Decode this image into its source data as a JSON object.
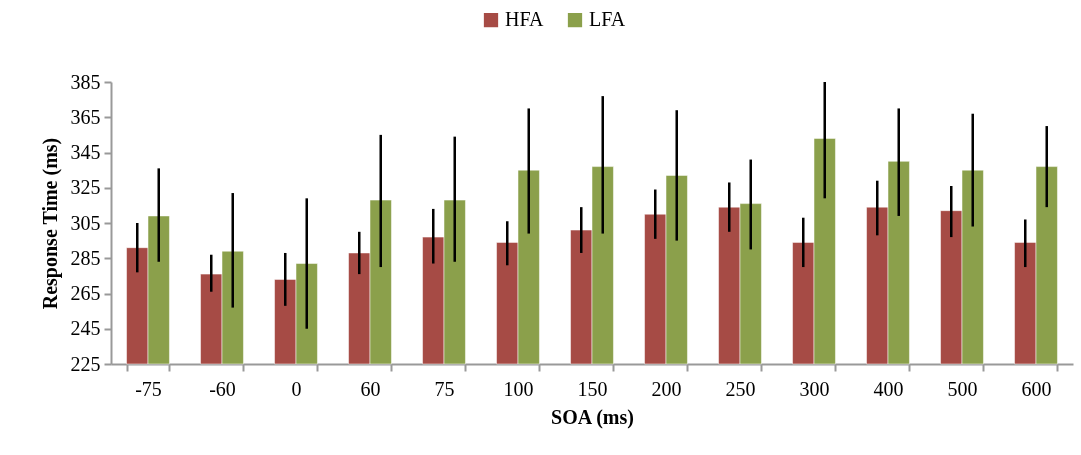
{
  "chart_data": {
    "type": "bar",
    "xlabel": "SOA (ms)",
    "ylabel": "Response Time (ms)",
    "categories": [
      "-75",
      "-60",
      "0",
      "60",
      "75",
      "100",
      "150",
      "200",
      "250",
      "300",
      "400",
      "500",
      "600"
    ],
    "series": [
      {
        "name": "HFA",
        "color": "#a64b45",
        "values": [
          291,
          276,
          273,
          288,
          297,
          294,
          301,
          310,
          314,
          294,
          314,
          312,
          294
        ],
        "errors": [
          [
            277,
            305
          ],
          [
            266,
            287
          ],
          [
            258,
            288
          ],
          [
            276,
            300
          ],
          [
            282,
            313
          ],
          [
            281,
            306
          ],
          [
            288,
            314
          ],
          [
            296,
            324
          ],
          [
            300,
            328
          ],
          [
            280,
            308
          ],
          [
            298,
            329
          ],
          [
            297,
            326
          ],
          [
            280,
            307
          ]
        ]
      },
      {
        "name": "LFA",
        "color": "#8ba04b",
        "values": [
          309,
          289,
          282,
          318,
          318,
          335,
          337,
          332,
          316,
          353,
          340,
          335,
          337
        ],
        "errors": [
          [
            283,
            336
          ],
          [
            257,
            322
          ],
          [
            245,
            319
          ],
          [
            280,
            355
          ],
          [
            283,
            354
          ],
          [
            299,
            370
          ],
          [
            299,
            377
          ],
          [
            295,
            369
          ],
          [
            290,
            341
          ],
          [
            319,
            385
          ],
          [
            309,
            370
          ],
          [
            303,
            367
          ],
          [
            314,
            360
          ]
        ]
      }
    ],
    "ylim": [
      225,
      385
    ],
    "yticks": [
      225,
      245,
      265,
      285,
      305,
      325,
      345,
      365,
      385
    ],
    "grid": false,
    "legend": "top"
  }
}
